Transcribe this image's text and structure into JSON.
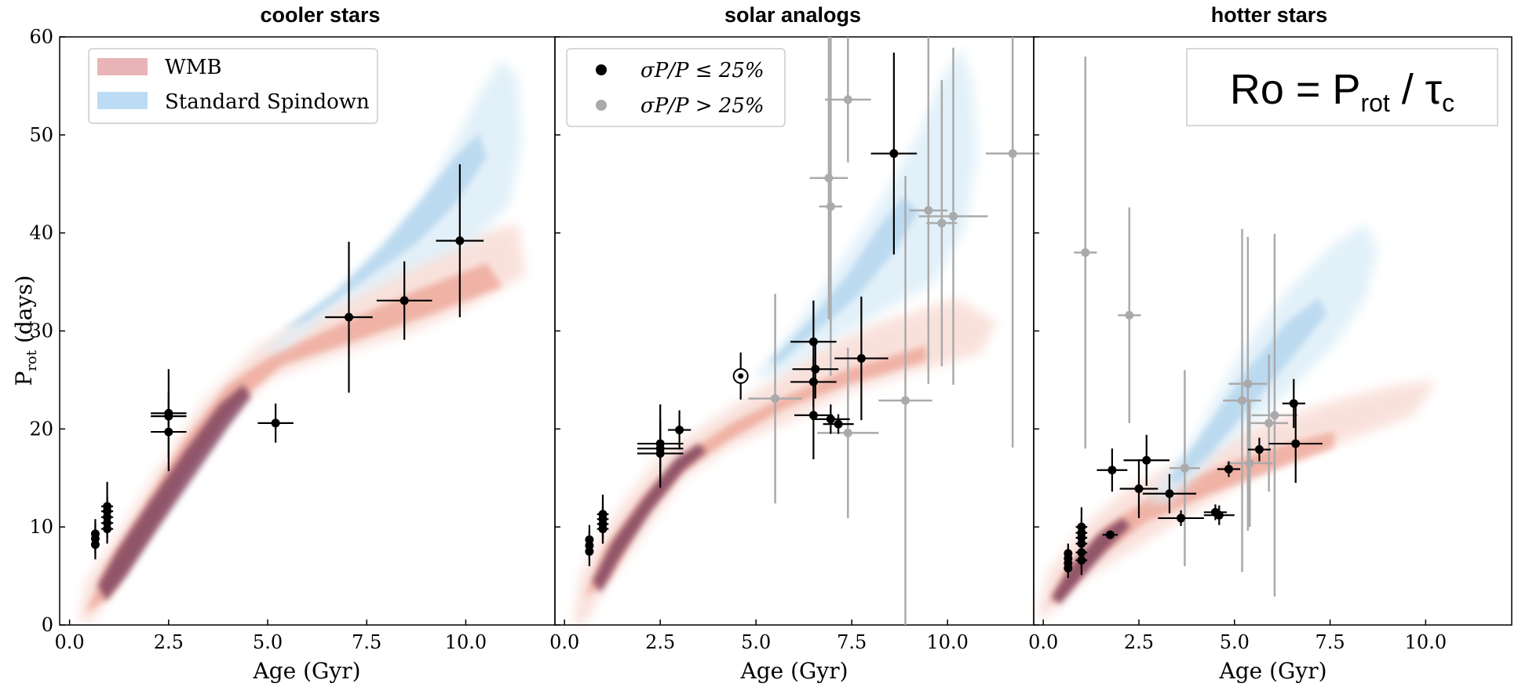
{
  "figure": {
    "xlabel": "Age (Gyr)",
    "ylabel_main": "P",
    "ylabel_sub": "rot",
    "ylabel_units": " (days)",
    "formula": {
      "lhs": "Ro = P",
      "p_sub": "rot",
      "mid": " / τ",
      "tau_sub": "c"
    },
    "legend_models": [
      {
        "label": "WMB",
        "color": "#e8b4b8"
      },
      {
        "label": "Standard Spindown",
        "color": "#bcdcf4"
      }
    ],
    "legend_obs": [
      {
        "label": "σP/P ≤ 25%",
        "color": "#000000"
      },
      {
        "label": "σP/P > 25%",
        "color": "#aaaaaa"
      }
    ],
    "colors": {
      "wmb": "#e0605a",
      "wmb_core": "#6b3050",
      "std": "#6aaedc",
      "good": "#000000",
      "poor": "#aaaaaa"
    }
  },
  "chart_data": [
    {
      "type": "scatter",
      "title": "cooler stars",
      "xlabel": "Age (Gyr)",
      "ylabel": "Prot (days)",
      "xlim": [
        -0.25,
        12.25
      ],
      "ylim": [
        0,
        60
      ],
      "xticks": [
        "0.0",
        "2.5",
        "5.0",
        "7.5",
        "10.0"
      ],
      "yticks": [
        "0",
        "10",
        "20",
        "30",
        "40",
        "50",
        "60"
      ],
      "series": [
        {
          "name": "σP/P ≤ 25%",
          "points": [
            {
              "x": 0.65,
              "y": 8.2,
              "xerr": 0.05,
              "yerr": 1.5
            },
            {
              "x": 0.65,
              "y": 8.8,
              "xerr": 0.05,
              "yerr": 1.5
            },
            {
              "x": 0.65,
              "y": 9.3,
              "xerr": 0.05,
              "yerr": 1.5
            },
            {
              "x": 0.95,
              "y": 9.8,
              "xerr": 0.15,
              "yerr": 1.5
            },
            {
              "x": 0.95,
              "y": 10.4,
              "xerr": 0.15,
              "yerr": 1.5
            },
            {
              "x": 0.95,
              "y": 11.0,
              "xerr": 0.15,
              "yerr": 1.5
            },
            {
              "x": 0.95,
              "y": 11.6,
              "xerr": 0.15,
              "yerr": 1.5
            },
            {
              "x": 0.95,
              "y": 12.1,
              "xerr": 0.15,
              "yerr": 2.5
            },
            {
              "x": 2.5,
              "y": 21.6,
              "xerr": 0.45,
              "yerr": 4.5
            },
            {
              "x": 2.5,
              "y": 21.3,
              "xerr": 0.45,
              "yerr": 1.0
            },
            {
              "x": 2.5,
              "y": 19.7,
              "xerr": 0.45,
              "yerr": 4.0
            },
            {
              "x": 5.2,
              "y": 20.6,
              "xerr": 0.45,
              "yerr": 2.0
            },
            {
              "x": 7.05,
              "y": 31.4,
              "xerr": 0.6,
              "yerr": 7.7
            },
            {
              "x": 8.45,
              "y": 33.1,
              "xerr": 0.7,
              "yerr": 4.0
            },
            {
              "x": 9.85,
              "y": 39.2,
              "xerr": 0.6,
              "yerr": 7.8
            }
          ]
        }
      ]
    },
    {
      "type": "scatter",
      "title": "solar analogs",
      "xlabel": "Age (Gyr)",
      "ylabel": "",
      "xlim": [
        -0.25,
        12.25
      ],
      "ylim": [
        0,
        60
      ],
      "xticks": [
        "0.0",
        "2.5",
        "5.0",
        "7.5",
        "10.0"
      ],
      "yticks": [],
      "sun": {
        "x": 4.6,
        "y": 25.4,
        "yerr": 2.4
      },
      "series": [
        {
          "name": "σP/P ≤ 25%",
          "points": [
            {
              "x": 0.65,
              "y": 7.5,
              "xerr": 0.05,
              "yerr": 1.5
            },
            {
              "x": 0.65,
              "y": 8.1,
              "xerr": 0.05,
              "yerr": 1.5
            },
            {
              "x": 0.65,
              "y": 8.7,
              "xerr": 0.05,
              "yerr": 1.5
            },
            {
              "x": 1.0,
              "y": 9.8,
              "xerr": 0.15,
              "yerr": 1.5
            },
            {
              "x": 1.0,
              "y": 10.3,
              "xerr": 0.15,
              "yerr": 1.5
            },
            {
              "x": 1.0,
              "y": 10.8,
              "xerr": 0.15,
              "yerr": 2.5
            },
            {
              "x": 1.0,
              "y": 11.3,
              "xerr": 0.15,
              "yerr": 1.5
            },
            {
              "x": 2.5,
              "y": 17.5,
              "xerr": 0.6,
              "yerr": 3.5
            },
            {
              "x": 2.5,
              "y": 18.0,
              "xerr": 0.6,
              "yerr": 2.0
            },
            {
              "x": 2.5,
              "y": 18.5,
              "xerr": 0.6,
              "yerr": 4.0
            },
            {
              "x": 3.0,
              "y": 19.9,
              "xerr": 0.3,
              "yerr": 2.0
            },
            {
              "x": 6.5,
              "y": 28.9,
              "xerr": 0.6,
              "yerr": 4.2
            },
            {
              "x": 6.5,
              "y": 24.8,
              "xerr": 0.6,
              "yerr": 2.5
            },
            {
              "x": 6.55,
              "y": 26.1,
              "xerr": 0.6,
              "yerr": 3.0
            },
            {
              "x": 6.5,
              "y": 21.4,
              "xerr": 0.5,
              "yerr": 4.5
            },
            {
              "x": 6.95,
              "y": 21.0,
              "xerr": 0.5,
              "yerr": 1.5
            },
            {
              "x": 7.15,
              "y": 20.5,
              "xerr": 0.4,
              "yerr": 1.0
            },
            {
              "x": 7.75,
              "y": 27.2,
              "xerr": 0.7,
              "yerr": 6.3
            },
            {
              "x": 8.6,
              "y": 48.1,
              "xerr": 0.6,
              "yerr": 10.3
            }
          ]
        },
        {
          "name": "σP/P > 25%",
          "points": [
            {
              "x": 5.5,
              "y": 23.1,
              "xerr": 0.7,
              "yerr": 10.7
            },
            {
              "x": 6.9,
              "y": 45.6,
              "xerr": 0.5,
              "yerr": 14.4
            },
            {
              "x": 6.95,
              "y": 42.7,
              "xerr": 0.3,
              "yerr": 17.3
            },
            {
              "x": 7.4,
              "y": 53.6,
              "xerr": 0.6,
              "yerr": 6.4
            },
            {
              "x": 7.4,
              "y": 19.6,
              "xerr": 0.8,
              "yerr": 8.7
            },
            {
              "x": 8.9,
              "y": 22.9,
              "xerr": 0.7,
              "yerr": 22.9
            },
            {
              "x": 9.5,
              "y": 42.3,
              "xerr": 0.5,
              "yerr": 17.7
            },
            {
              "x": 9.85,
              "y": 41.0,
              "xerr": 0.4,
              "yerr": 14.6
            },
            {
              "x": 10.15,
              "y": 41.7,
              "xerr": 0.9,
              "yerr": 17.2
            },
            {
              "x": 11.7,
              "y": 48.1,
              "xerr": 0.7,
              "yerr": 30.0
            }
          ]
        }
      ]
    },
    {
      "type": "scatter",
      "title": "hotter stars",
      "xlabel": "Age (Gyr)",
      "ylabel": "",
      "xlim": [
        -0.25,
        12.25
      ],
      "ylim": [
        0,
        60
      ],
      "xticks": [
        "0.0",
        "2.5",
        "5.0",
        "7.5",
        "10.0"
      ],
      "yticks": [],
      "series": [
        {
          "name": "σP/P ≤ 25%",
          "points": [
            {
              "x": 0.65,
              "y": 5.8,
              "xerr": 0.05,
              "yerr": 1.0
            },
            {
              "x": 0.65,
              "y": 6.3,
              "xerr": 0.05,
              "yerr": 1.0
            },
            {
              "x": 0.65,
              "y": 6.8,
              "xerr": 0.05,
              "yerr": 1.0
            },
            {
              "x": 0.65,
              "y": 7.3,
              "xerr": 0.05,
              "yerr": 1.0
            },
            {
              "x": 1.0,
              "y": 6.6,
              "xerr": 0.15,
              "yerr": 1.5
            },
            {
              "x": 1.0,
              "y": 7.4,
              "xerr": 0.15,
              "yerr": 1.5
            },
            {
              "x": 1.0,
              "y": 8.3,
              "xerr": 0.15,
              "yerr": 1.5
            },
            {
              "x": 1.0,
              "y": 8.9,
              "xerr": 0.15,
              "yerr": 1.5
            },
            {
              "x": 1.0,
              "y": 9.4,
              "xerr": 0.15,
              "yerr": 1.5
            },
            {
              "x": 1.0,
              "y": 10.0,
              "xerr": 0.15,
              "yerr": 2.0
            },
            {
              "x": 1.75,
              "y": 9.2,
              "xerr": 0.2,
              "yerr": 0.3
            },
            {
              "x": 1.8,
              "y": 15.8,
              "xerr": 0.4,
              "yerr": 2.2
            },
            {
              "x": 2.5,
              "y": 13.9,
              "xerr": 0.5,
              "yerr": 3.0
            },
            {
              "x": 2.7,
              "y": 16.8,
              "xerr": 0.6,
              "yerr": 2.6
            },
            {
              "x": 3.3,
              "y": 13.4,
              "xerr": 0.7,
              "yerr": 2.0
            },
            {
              "x": 3.6,
              "y": 10.9,
              "xerr": 0.6,
              "yerr": 0.8
            },
            {
              "x": 4.5,
              "y": 11.5,
              "xerr": 0.3,
              "yerr": 0.8
            },
            {
              "x": 4.6,
              "y": 11.2,
              "xerr": 0.4,
              "yerr": 1.0
            },
            {
              "x": 4.85,
              "y": 15.9,
              "xerr": 0.3,
              "yerr": 0.8
            },
            {
              "x": 5.65,
              "y": 17.9,
              "xerr": 0.3,
              "yerr": 1.2
            },
            {
              "x": 6.55,
              "y": 22.6,
              "xerr": 0.3,
              "yerr": 2.5
            },
            {
              "x": 6.6,
              "y": 18.5,
              "xerr": 0.7,
              "yerr": 4.0
            }
          ]
        },
        {
          "name": "σP/P > 25%",
          "points": [
            {
              "x": 1.1,
              "y": 38.0,
              "xerr": 0.3,
              "yerr": 20.0
            },
            {
              "x": 2.25,
              "y": 31.6,
              "xerr": 0.3,
              "yerr": 11.0
            },
            {
              "x": 3.7,
              "y": 16.0,
              "xerr": 0.4,
              "yerr": 10.0
            },
            {
              "x": 5.2,
              "y": 22.9,
              "xerr": 0.5,
              "yerr": 17.5
            },
            {
              "x": 5.35,
              "y": 24.6,
              "xerr": 0.5,
              "yerr": 15.0
            },
            {
              "x": 5.4,
              "y": 16.5,
              "xerr": 0.6,
              "yerr": 6.5
            },
            {
              "x": 5.9,
              "y": 20.6,
              "xerr": 0.5,
              "yerr": 7.0
            },
            {
              "x": 6.05,
              "y": 21.4,
              "xerr": 0.6,
              "yerr": 18.5
            }
          ]
        }
      ]
    }
  ]
}
